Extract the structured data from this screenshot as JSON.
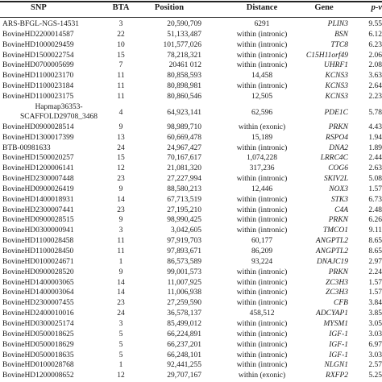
{
  "table": {
    "headers": {
      "snp": "SNP",
      "bta": "BTA",
      "position": "Position",
      "distance": "Distance",
      "gene": "Gene",
      "p": "p-v"
    },
    "rows": [
      {
        "snp": "ARS-BFGL-NGS-14531",
        "bta": "3",
        "position": "20,590,709",
        "distance": "6291",
        "gene": "PLIN3",
        "p": "9.55"
      },
      {
        "snp": "BovineHD2200014587",
        "bta": "22",
        "position": "51,133,487",
        "distance": "within (intronic)",
        "gene": "BSN",
        "p": "6.12"
      },
      {
        "snp": "BovineHD1000029459",
        "bta": "10",
        "position": "101,577,026",
        "distance": "within (intronic)",
        "gene": "TTC8",
        "p": "6.23"
      },
      {
        "snp": "BovineHD1500022754",
        "bta": "15",
        "position": "78,218,321",
        "distance": "within (intronic)",
        "gene": "C15H11orf49",
        "p": "2.06"
      },
      {
        "snp": "BovineHD0700005699",
        "bta": "7",
        "position": "20461 012",
        "distance": "within (intronic)",
        "gene": "UHRF1",
        "p": "2.08"
      },
      {
        "snp": "BovineHD1100023170",
        "bta": "11",
        "position": "80,858,593",
        "distance": "14,458",
        "gene": "KCNS3",
        "p": "3.63"
      },
      {
        "snp": "BovineHD1100023184",
        "bta": "11",
        "position": "80,898,981",
        "distance": "within (intronic)",
        "gene": "KCNS3",
        "p": "2.64"
      },
      {
        "snp": "BovineHD1100023175",
        "bta": "11",
        "position": "80,860,546",
        "distance": "12,505",
        "gene": "KCNS3",
        "p": "2.23"
      },
      {
        "snp": "Hapmap36353-\nSCAFFOLD29708_3468",
        "bta": "4",
        "position": "64,923,141",
        "distance": "62,596",
        "gene": "PDE1C",
        "p": "5.78",
        "tall": true
      },
      {
        "snp": "BovineHD0900028514",
        "bta": "9",
        "position": "98,989,710",
        "distance": "within (exonic)",
        "gene": "PRKN",
        "p": "4.43"
      },
      {
        "snp": "BovineHD1300017399",
        "bta": "13",
        "position": "60,669,478",
        "distance": "15,189",
        "gene": "RSPO4",
        "p": "1.94"
      },
      {
        "snp": "BTB-00981633",
        "bta": "24",
        "position": "24,967,427",
        "distance": "within (intronic)",
        "gene": "DNA2",
        "p": "1.89"
      },
      {
        "snp": "BovineHD1500020257",
        "bta": "15",
        "position": "70,167,617",
        "distance": "1,074,228",
        "gene": "LRRC4C",
        "p": "2.44"
      },
      {
        "snp": "BovineHD1200006141",
        "bta": "12",
        "position": "21,081,320",
        "distance": "317,236",
        "gene": "COG6",
        "p": "2.63"
      },
      {
        "snp": "BovineHD2300007448",
        "bta": "23",
        "position": "27,227,994",
        "distance": "within (intronic)",
        "gene": "SKIV2L",
        "p": "5.08"
      },
      {
        "snp": "BovineHD0900026419",
        "bta": "9",
        "position": "88,580,213",
        "distance": "12,446",
        "gene": "NOX3",
        "p": "1.57"
      },
      {
        "snp": "BovineHD1400018931",
        "bta": "14",
        "position": "67,713,519",
        "distance": "within (intronic)",
        "gene": "STK3",
        "p": "6.73"
      },
      {
        "snp": "BovineHD2300007441",
        "bta": "23",
        "position": "27,195,210",
        "distance": "within (intronic)",
        "gene": "C4A",
        "p": "2.48"
      },
      {
        "snp": "BovineHD0900028515",
        "bta": "9",
        "position": "98,990,425",
        "distance": "within (intronic)",
        "gene": "PRKN",
        "p": "6.26"
      },
      {
        "snp": "BovineHD0300000941",
        "bta": "3",
        "position": "3,042,605",
        "distance": "within (intronic)",
        "gene": "TMCO1",
        "p": "9.11"
      },
      {
        "snp": "BovineHD1100028458",
        "bta": "11",
        "position": "97,919,703",
        "distance": "60,177",
        "gene": "ANGPTL2",
        "p": "8.65"
      },
      {
        "snp": "BovineHD1100028450",
        "bta": "11",
        "position": "97,893,671",
        "distance": "86,209",
        "gene": "ANGPTL2",
        "p": "8.65"
      },
      {
        "snp": "BovineHD0100024671",
        "bta": "1",
        "position": "86,573,589",
        "distance": "93,224",
        "gene": "DNAJC19",
        "p": "2.97"
      },
      {
        "snp": "BovineHD0900028520",
        "bta": "9",
        "position": "99,001,573",
        "distance": "within (intronic)",
        "gene": "PRKN",
        "p": "2.24"
      },
      {
        "snp": "BovineHD1400003065",
        "bta": "14",
        "position": "11,007,925",
        "distance": "within (intronic)",
        "gene": "ZC3H3",
        "p": "1.57"
      },
      {
        "snp": "BovineHD1400003064",
        "bta": "14",
        "position": "11,006,938",
        "distance": "within (intronic)",
        "gene": "ZC3H3",
        "p": "1.57"
      },
      {
        "snp": "BovineHD2300007455",
        "bta": "23",
        "position": "27,259,590",
        "distance": "within (intronic)",
        "gene": "CFB",
        "p": "3.84"
      },
      {
        "snp": "BovineHD2400010016",
        "bta": "24",
        "position": "36,578,137",
        "distance": "458,512",
        "gene": "ADCYAP1",
        "p": "3.85"
      },
      {
        "snp": "BovineHD0300025174",
        "bta": "3",
        "position": "85,499,012",
        "distance": "within (intronic)",
        "gene": "MYSM1",
        "p": "3.05"
      },
      {
        "snp": "BovineHD0500018625",
        "bta": "5",
        "position": "66,224,891",
        "distance": "within (intronic)",
        "gene": "IGF-1",
        "p": "3.03"
      },
      {
        "snp": "BovineHD0500018629",
        "bta": "5",
        "position": "66,237,201",
        "distance": "within (intronic)",
        "gene": "IGF-1",
        "p": "6.97"
      },
      {
        "snp": "BovineHD0500018635",
        "bta": "5",
        "position": "66,248,101",
        "distance": "within (intronic)",
        "gene": "IGF-1",
        "p": "3.03"
      },
      {
        "snp": "BovineHD0100028768",
        "bta": "1",
        "position": "92,441,255",
        "distance": "within (intronic)",
        "gene": "NLGN1",
        "p": "2.57"
      },
      {
        "snp": "BovineHD1200008652",
        "bta": "12",
        "position": "29,707,167",
        "distance": "within (exonic)",
        "gene": "RXFP2",
        "p": "5.25"
      }
    ]
  }
}
